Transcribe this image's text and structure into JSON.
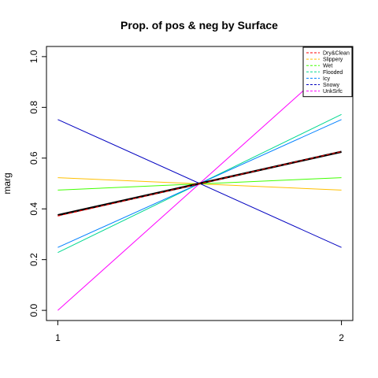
{
  "chart_data": {
    "type": "line",
    "title": "Prop. of pos & neg by Surface",
    "xlabel": "",
    "ylabel": "marg",
    "x": [
      1,
      2
    ],
    "x_ticks": [
      "1",
      "2"
    ],
    "xlim": [
      0.96,
      2.04
    ],
    "ylim": [
      -0.04,
      1.04
    ],
    "y_ticks": [
      "0.0",
      "0.2",
      "0.4",
      "0.6",
      "0.8",
      "1.0"
    ],
    "legend_position": "top-right",
    "grid": false,
    "series": [
      {
        "name": "Dry&Clean",
        "color": "#ff0000",
        "dash": "dashed",
        "values": [
          0.372,
          0.626
        ]
      },
      {
        "name": "Slippery",
        "color": "#ffc000",
        "dash": "solid",
        "values": [
          0.523,
          0.474
        ]
      },
      {
        "name": "Wet",
        "color": "#40ff00",
        "dash": "solid",
        "values": [
          0.474,
          0.523
        ]
      },
      {
        "name": "Flooded",
        "color": "#00d890",
        "dash": "solid",
        "values": [
          0.228,
          0.772
        ]
      },
      {
        "name": "Icy",
        "color": "#0080ff",
        "dash": "solid",
        "values": [
          0.248,
          0.752
        ]
      },
      {
        "name": "Snowy",
        "color": "#0000c0",
        "dash": "solid",
        "values": [
          0.752,
          0.248
        ]
      },
      {
        "name": "UnkSrfc",
        "color": "#ff00ff",
        "dash": "solid",
        "values": [
          0.0,
          1.0
        ]
      }
    ],
    "reference_line": {
      "color": "#000000",
      "values": [
        0.375,
        0.625
      ]
    }
  }
}
